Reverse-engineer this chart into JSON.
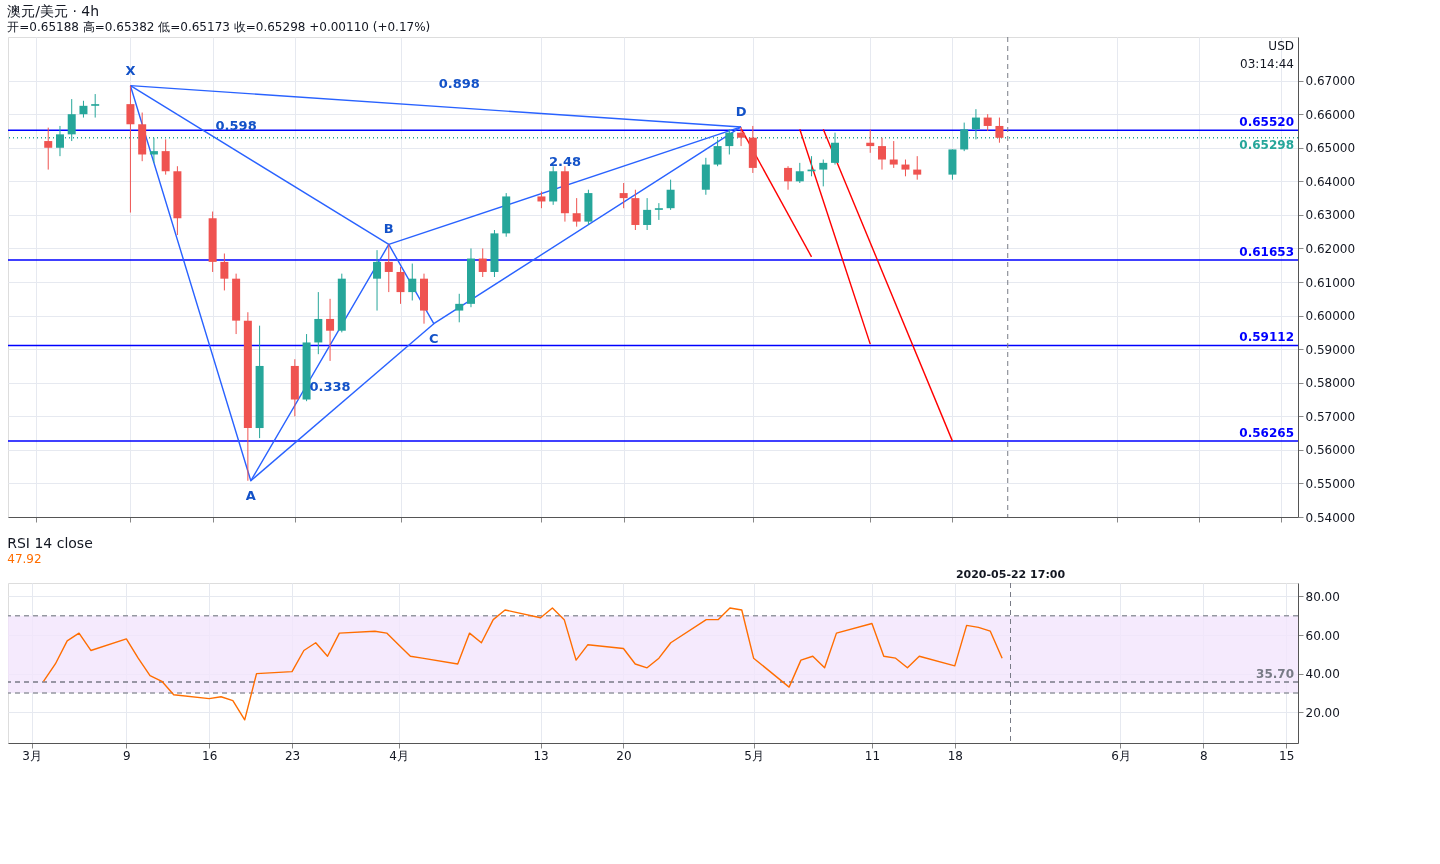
{
  "chart_data": [
    {
      "type": "candlestick",
      "title": "澳元/美元 · 4h",
      "subtitle": "开=0.65188 高=0.65382 低=0.65173 收=0.65298 +0.00110 (+0.17%)",
      "x": [
        "2020-03-02",
        "2020-03-03",
        "2020-03-04",
        "2020-03-05",
        "2020-03-06",
        "2020-03-09",
        "2020-03-10",
        "2020-03-11",
        "2020-03-12",
        "2020-03-13",
        "2020-03-16",
        "2020-03-17",
        "2020-03-18",
        "2020-03-19",
        "2020-03-20",
        "2020-03-23",
        "2020-03-24",
        "2020-03-25",
        "2020-03-26",
        "2020-03-27",
        "2020-03-30",
        "2020-03-31",
        "2020-04-01",
        "2020-04-02",
        "2020-04-03",
        "2020-04-06",
        "2020-04-07",
        "2020-04-08",
        "2020-04-09",
        "2020-04-10",
        "2020-04-13",
        "2020-04-14",
        "2020-04-15",
        "2020-04-16",
        "2020-04-17",
        "2020-04-20",
        "2020-04-21",
        "2020-04-22",
        "2020-04-23",
        "2020-04-24",
        "2020-04-27",
        "2020-04-28",
        "2020-04-29",
        "2020-04-30",
        "2020-05-01",
        "2020-05-04",
        "2020-05-05",
        "2020-05-06",
        "2020-05-07",
        "2020-05-08",
        "2020-05-11",
        "2020-05-12",
        "2020-05-13",
        "2020-05-14",
        "2020-05-15",
        "2020-05-18",
        "2020-05-19",
        "2020-05-20",
        "2020-05-21",
        "2020-05-22"
      ],
      "ohlc": [
        [
          0.652,
          0.656,
          0.6435,
          0.65
        ],
        [
          0.65,
          0.6565,
          0.6475,
          0.654
        ],
        [
          0.654,
          0.6645,
          0.652,
          0.66
        ],
        [
          0.66,
          0.664,
          0.659,
          0.6625
        ],
        [
          0.6625,
          0.666,
          0.659,
          0.663
        ],
        [
          0.663,
          0.6685,
          0.6307,
          0.657
        ],
        [
          0.657,
          0.6605,
          0.646,
          0.648
        ],
        [
          0.648,
          0.653,
          0.6455,
          0.649
        ],
        [
          0.649,
          0.6525,
          0.642,
          0.643
        ],
        [
          0.643,
          0.6445,
          0.624,
          0.629
        ],
        [
          0.629,
          0.631,
          0.613,
          0.616
        ],
        [
          0.616,
          0.6185,
          0.6075,
          0.611
        ],
        [
          0.611,
          0.6125,
          0.5945,
          0.5985
        ],
        [
          0.5985,
          0.601,
          0.5508,
          0.5665
        ],
        [
          0.5665,
          0.597,
          0.5635,
          0.585
        ],
        [
          0.585,
          0.587,
          0.57,
          0.575
        ],
        [
          0.575,
          0.5945,
          0.5745,
          0.592
        ],
        [
          0.592,
          0.607,
          0.5885,
          0.599
        ],
        [
          0.599,
          0.605,
          0.5865,
          0.5955
        ],
        [
          0.5955,
          0.6125,
          0.595,
          0.611
        ],
        [
          0.611,
          0.6195,
          0.6015,
          0.616
        ],
        [
          0.616,
          0.6212,
          0.607,
          0.613
        ],
        [
          0.613,
          0.6145,
          0.6035,
          0.607
        ],
        [
          0.607,
          0.6155,
          0.6045,
          0.611
        ],
        [
          0.611,
          0.6125,
          0.5976,
          0.6015
        ],
        [
          0.6015,
          0.6065,
          0.598,
          0.6035
        ],
        [
          0.6035,
          0.62,
          0.6025,
          0.617
        ],
        [
          0.617,
          0.62,
          0.6115,
          0.613
        ],
        [
          0.613,
          0.6255,
          0.6115,
          0.6245
        ],
        [
          0.6245,
          0.6365,
          0.6235,
          0.6355
        ],
        [
          0.6355,
          0.637,
          0.632,
          0.634
        ],
        [
          0.634,
          0.6445,
          0.633,
          0.643
        ],
        [
          0.643,
          0.6445,
          0.628,
          0.6305
        ],
        [
          0.6305,
          0.635,
          0.6265,
          0.628
        ],
        [
          0.628,
          0.6375,
          0.627,
          0.6365
        ],
        [
          0.6365,
          0.6395,
          0.632,
          0.635
        ],
        [
          0.635,
          0.6375,
          0.6255,
          0.627
        ],
        [
          0.627,
          0.635,
          0.6255,
          0.6315
        ],
        [
          0.6315,
          0.6335,
          0.6285,
          0.632
        ],
        [
          0.632,
          0.6405,
          0.6315,
          0.6375
        ],
        [
          0.6375,
          0.647,
          0.636,
          0.645
        ],
        [
          0.645,
          0.6525,
          0.6445,
          0.6505
        ],
        [
          0.6505,
          0.6555,
          0.648,
          0.6545
        ],
        [
          0.6545,
          0.6562,
          0.6505,
          0.653
        ],
        [
          0.653,
          0.6565,
          0.6425,
          0.644
        ],
        [
          0.644,
          0.6445,
          0.6375,
          0.64
        ],
        [
          0.64,
          0.6455,
          0.6395,
          0.643
        ],
        [
          0.643,
          0.6475,
          0.6415,
          0.6435
        ],
        [
          0.6435,
          0.6465,
          0.6385,
          0.6455
        ],
        [
          0.6455,
          0.6545,
          0.645,
          0.6515
        ],
        [
          0.6515,
          0.6555,
          0.6485,
          0.6505
        ],
        [
          0.6505,
          0.653,
          0.6435,
          0.6465
        ],
        [
          0.6465,
          0.652,
          0.644,
          0.645
        ],
        [
          0.645,
          0.6465,
          0.6415,
          0.6435
        ],
        [
          0.6435,
          0.6475,
          0.6405,
          0.642
        ],
        [
          0.642,
          0.6495,
          0.6405,
          0.6495
        ],
        [
          0.6495,
          0.6575,
          0.649,
          0.6555
        ],
        [
          0.6555,
          0.6615,
          0.6525,
          0.659
        ],
        [
          0.659,
          0.66,
          0.655,
          0.6565
        ],
        [
          0.6565,
          0.659,
          0.6515,
          0.65298
        ]
      ],
      "colors": [
        "#ef5350",
        "#26a69a",
        "#26a69a",
        "#26a69a",
        "#26a69a",
        "#ef5350",
        "#ef5350",
        "#26a69a",
        "#ef5350",
        "#ef5350",
        "#ef5350",
        "#ef5350",
        "#ef5350",
        "#ef5350",
        "#26a69a",
        "#ef5350",
        "#26a69a",
        "#26a69a",
        "#ef5350",
        "#26a69a",
        "#26a69a",
        "#ef5350",
        "#ef5350",
        "#26a69a",
        "#ef5350",
        "#26a69a",
        "#26a69a",
        "#ef5350",
        "#26a69a",
        "#26a69a",
        "#ef5350",
        "#26a69a",
        "#ef5350",
        "#ef5350",
        "#26a69a",
        "#ef5350",
        "#ef5350",
        "#26a69a",
        "#26a69a",
        "#26a69a",
        "#26a69a",
        "#26a69a",
        "#26a69a",
        "#ef5350",
        "#ef5350",
        "#ef5350",
        "#26a69a",
        "#26a69a",
        "#26a69a",
        "#26a69a",
        "#ef5350",
        "#ef5350",
        "#ef5350",
        "#ef5350",
        "#ef5350",
        "#26a69a",
        "#26a69a",
        "#26a69a",
        "#ef5350",
        "#ef5350"
      ],
      "series": [
        {
          "type": "line",
          "color": "#2962ff",
          "x": [
            "2020-03-09",
            "2020-03-19T06:00",
            "2020-03-31",
            "2020-04-03T20:00",
            "2020-04-30"
          ],
          "values": [
            0.6685,
            0.5508,
            0.6212,
            0.5976,
            0.6562
          ]
        },
        {
          "type": "line",
          "color": "#2962ff",
          "x": [
            "2020-03-09",
            "2020-03-31"
          ],
          "values": [
            0.6685,
            0.6212
          ]
        },
        {
          "type": "line",
          "color": "#2962ff",
          "x": [
            "2020-03-31",
            "2020-04-30"
          ],
          "values": [
            0.6212,
            0.6562
          ]
        },
        {
          "type": "line",
          "color": "#2962ff",
          "x": [
            "2020-03-09",
            "2020-04-30"
          ],
          "values": [
            0.6685,
            0.6562
          ]
        },
        {
          "type": "line",
          "color": "#2962ff",
          "x": [
            "2020-03-19T06:00",
            "2020-04-03T20:00"
          ],
          "values": [
            0.5508,
            0.5976
          ]
        },
        {
          "type": "line",
          "color": "#ff0000",
          "x": [
            "2020-04-30",
            "2020-05-06"
          ],
          "values": [
            0.6557,
            0.6175
          ]
        },
        {
          "type": "line",
          "color": "#ff0000",
          "x": [
            "2020-05-05",
            "2020-05-11"
          ],
          "values": [
            0.6555,
            0.5915
          ]
        },
        {
          "type": "line",
          "color": "#ff0000",
          "x": [
            "2020-05-07",
            "2020-05-18"
          ],
          "values": [
            0.6555,
            0.5626
          ]
        }
      ],
      "xlim": [
        "2020-02-28",
        "2020-06-16"
      ],
      "xticks": [
        {
          "value": "2020-03-01",
          "label": null
        },
        {
          "value": "2020-03-09",
          "label": null
        },
        {
          "value": "2020-03-16",
          "label": null
        },
        {
          "value": "2020-03-23",
          "label": null
        },
        {
          "value": "2020-04-01",
          "label": null
        },
        {
          "value": "2020-04-13",
          "label": null
        },
        {
          "value": "2020-04-20",
          "label": null
        },
        {
          "value": "2020-05-01",
          "label": null
        },
        {
          "value": "2020-05-11",
          "label": null
        },
        {
          "value": "2020-05-18",
          "label": null
        },
        {
          "value": "2020-06-01",
          "label": null
        },
        {
          "value": "2020-06-08",
          "label": null
        },
        {
          "value": "2020-06-15",
          "label": null
        }
      ],
      "ylim": [
        0.54,
        0.683
      ],
      "yticks": [
        {
          "value": 0.54,
          "label": "0.54000"
        },
        {
          "value": 0.55,
          "label": "0.55000"
        },
        {
          "value": 0.56,
          "label": "0.56000"
        },
        {
          "value": 0.57,
          "label": "0.57000"
        },
        {
          "value": 0.58,
          "label": "0.58000"
        },
        {
          "value": 0.59,
          "label": "0.59000"
        },
        {
          "value": 0.6,
          "label": "0.60000"
        },
        {
          "value": 0.61,
          "label": "0.61000"
        },
        {
          "value": 0.62,
          "label": "0.62000"
        },
        {
          "value": 0.63,
          "label": "0.63000"
        },
        {
          "value": 0.64,
          "label": "0.64000"
        },
        {
          "value": 0.65,
          "label": "0.65000"
        },
        {
          "value": 0.66,
          "label": "0.66000"
        },
        {
          "value": 0.67,
          "label": "0.67000"
        }
      ],
      "ref_lines": [
        {
          "axis": "y",
          "value": 0.6552,
          "label": "0.65520",
          "color": "#0000ff"
        },
        {
          "axis": "y",
          "value": 0.61653,
          "label": "0.61653",
          "color": "#0000ff"
        },
        {
          "axis": "y",
          "value": 0.59112,
          "label": "0.59112",
          "color": "#0000ff"
        },
        {
          "axis": "y",
          "value": 0.56265,
          "label": "0.56265",
          "color": "#0000ff"
        },
        {
          "axis": "y",
          "value": 0.65298,
          "label": "0.65298",
          "color": "#26a69a",
          "line_style": "dotted"
        },
        {
          "axis": "x",
          "value": "2020-05-22T17:00",
          "color": "#787b86",
          "line_style": "dashed"
        }
      ],
      "annotations": [
        {
          "text": "X",
          "x": "2020-03-09",
          "y": 0.6685
        },
        {
          "text": "A",
          "x": "2020-03-19T06:00",
          "y": 0.5508
        },
        {
          "text": "B",
          "x": "2020-03-31",
          "y": 0.6212
        },
        {
          "text": "C",
          "x": "2020-04-03T20:00",
          "y": 0.5976
        },
        {
          "text": "D",
          "x": "2020-04-30",
          "y": 0.6562
        },
        {
          "text": "0.898",
          "x": "2020-04-06",
          "y": 0.6619
        },
        {
          "text": "0.598",
          "x": "2020-03-18",
          "y": 0.6492
        },
        {
          "text": "2.48",
          "x": "2020-04-15",
          "y": 0.6387
        },
        {
          "text": "0.338",
          "x": "2020-03-26",
          "y": 0.5715
        },
        "USD",
        "03:14:44"
      ],
      "grid": true,
      "tick_labels": "y"
    },
    {
      "type": "line",
      "title": "RSI 14 close",
      "subtitle": "47.92",
      "x": [
        "2020-03-02",
        "2020-03-03",
        "2020-03-04",
        "2020-03-05",
        "2020-03-06",
        "2020-03-09",
        "2020-03-10",
        "2020-03-11",
        "2020-03-12",
        "2020-03-13",
        "2020-03-16",
        "2020-03-17",
        "2020-03-18",
        "2020-03-19",
        "2020-03-20",
        "2020-03-23",
        "2020-03-24",
        "2020-03-25",
        "2020-03-26",
        "2020-03-27",
        "2020-03-30",
        "2020-03-31",
        "2020-04-01",
        "2020-04-02",
        "2020-04-03",
        "2020-04-06",
        "2020-04-07",
        "2020-04-08",
        "2020-04-09",
        "2020-04-10",
        "2020-04-13",
        "2020-04-14",
        "2020-04-15",
        "2020-04-16",
        "2020-04-17",
        "2020-04-20",
        "2020-04-21",
        "2020-04-22",
        "2020-04-23",
        "2020-04-24",
        "2020-04-27",
        "2020-04-28",
        "2020-04-29",
        "2020-04-30",
        "2020-05-01",
        "2020-05-04",
        "2020-05-05",
        "2020-05-06",
        "2020-05-07",
        "2020-05-08",
        "2020-05-11",
        "2020-05-12",
        "2020-05-13",
        "2020-05-14",
        "2020-05-15",
        "2020-05-18",
        "2020-05-19",
        "2020-05-20",
        "2020-05-21",
        "2020-05-22"
      ],
      "series": [
        {
          "color": "#ff6d00",
          "values": [
            36,
            45,
            57,
            61,
            52,
            58,
            48,
            39,
            36,
            29,
            27,
            28,
            26,
            16,
            40,
            41,
            52,
            56,
            49,
            61,
            62,
            61,
            55,
            49,
            48,
            45,
            61,
            56,
            68,
            73,
            69,
            74,
            68,
            47,
            55,
            53,
            45,
            43,
            48,
            56,
            68,
            68,
            74,
            73,
            48,
            33,
            47,
            49,
            43,
            61,
            66,
            49,
            48,
            43,
            49,
            44,
            65,
            64,
            62,
            47.92
          ]
        }
      ],
      "xlim": [
        "2020-02-28",
        "2020-06-16"
      ],
      "xticks": [
        {
          "value": "2020-03-01",
          "label": "3月"
        },
        {
          "value": "2020-03-09",
          "label": "9"
        },
        {
          "value": "2020-03-16",
          "label": "16"
        },
        {
          "value": "2020-03-23",
          "label": "23"
        },
        {
          "value": "2020-04-01",
          "label": "4月"
        },
        {
          "value": "2020-04-13",
          "label": "13"
        },
        {
          "value": "2020-04-20",
          "label": "20"
        },
        {
          "value": "2020-05-01",
          "label": "5月"
        },
        {
          "value": "2020-05-11",
          "label": "11"
        },
        {
          "value": "2020-05-18",
          "label": "18"
        },
        {
          "value": "2020-06-01",
          "label": "6月"
        },
        {
          "value": "2020-06-08",
          "label": "8"
        },
        {
          "value": "2020-06-15",
          "label": "15"
        }
      ],
      "ylim": [
        4,
        87
      ],
      "yticks": [
        {
          "value": 20,
          "label": "20.00"
        },
        {
          "value": 40,
          "label": "40.00"
        },
        {
          "value": 60,
          "label": "60.00"
        },
        {
          "value": 80,
          "label": "80.00"
        }
      ],
      "bands": [
        {
          "axis": "y",
          "from": 30,
          "to": 70,
          "color": "#f3e5fd"
        }
      ],
      "ref_lines": [
        {
          "axis": "y",
          "value": 70,
          "color": "#9598a1",
          "line_style": "dashed"
        },
        {
          "axis": "y",
          "value": 30,
          "color": "#9598a1",
          "line_style": "dashed"
        },
        {
          "axis": "y",
          "value": 35.7,
          "label": "35.70",
          "color": "#787b86",
          "line_style": "dashed"
        },
        {
          "axis": "x",
          "value": "2020-05-22T17:00",
          "label": "2020-05-22 17:00",
          "color": "#787b86",
          "line_style": "dashed"
        }
      ],
      "grid": true
    }
  ]
}
